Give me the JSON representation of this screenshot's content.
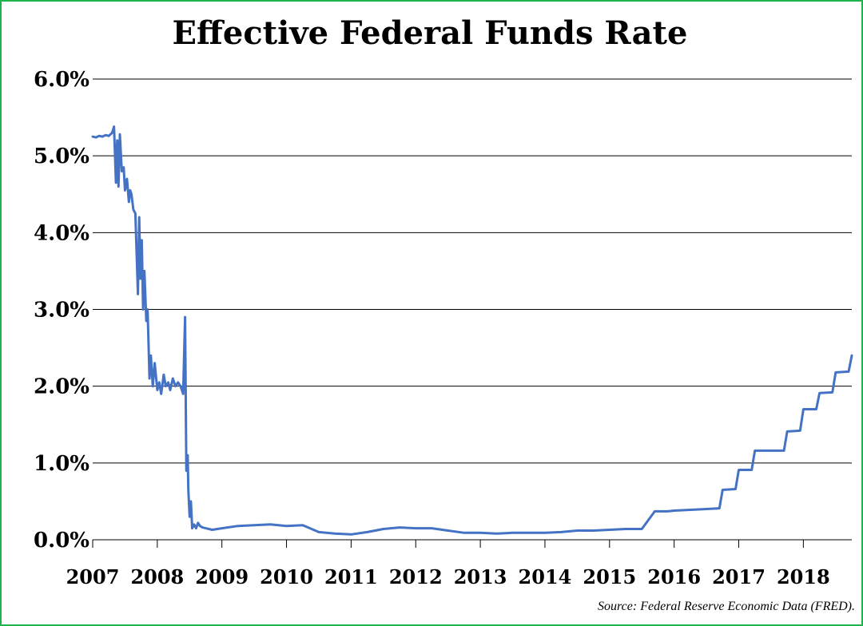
{
  "chart_data": {
    "type": "line",
    "title": "Effective Federal Funds Rate",
    "source": "Source: Federal Reserve Economic Data (FRED).",
    "xlabel": "",
    "ylabel": "",
    "x_ticks": [
      "2007",
      "2008",
      "2009",
      "2010",
      "2011",
      "2012",
      "2013",
      "2014",
      "2015",
      "2016",
      "2017",
      "2018"
    ],
    "y_ticks": [
      "0.0%",
      "1.0%",
      "2.0%",
      "3.0%",
      "4.0%",
      "5.0%",
      "6.0%"
    ],
    "ylim": [
      0,
      6
    ],
    "xlim": [
      2007.0,
      2018.75
    ],
    "grid": "horizontal",
    "legend": "none",
    "line_color": "#4472c4",
    "series": [
      {
        "x": [
          2007.0,
          2007.05,
          2007.1,
          2007.15,
          2007.2,
          2007.25,
          2007.3,
          2007.33,
          2007.36,
          2007.38,
          2007.4,
          2007.42,
          2007.45,
          2007.48,
          2007.5,
          2007.53,
          2007.56,
          2007.58,
          2007.6,
          2007.63,
          2007.66,
          2007.7,
          2007.72,
          2007.74,
          2007.76,
          2007.78,
          2007.8,
          2007.83,
          2007.85,
          2007.88,
          2007.9,
          2007.93,
          2007.96,
          2008.0,
          2008.03,
          2008.06,
          2008.1,
          2008.13,
          2008.17,
          2008.2,
          2008.24,
          2008.28,
          2008.32,
          2008.36,
          2008.4,
          2008.43,
          2008.45,
          2008.47,
          2008.48,
          2008.5,
          2008.52,
          2008.54,
          2008.57,
          2008.6,
          2008.63,
          2008.66,
          2008.7,
          2008.75,
          2008.85,
          2009.0,
          2009.25,
          2009.5,
          2009.75,
          2010.0,
          2010.25,
          2010.5,
          2010.75,
          2011.0,
          2011.25,
          2011.5,
          2011.75,
          2012.0,
          2012.25,
          2012.5,
          2012.75,
          2013.0,
          2013.25,
          2013.5,
          2013.75,
          2014.0,
          2014.25,
          2014.5,
          2014.75,
          2015.0,
          2015.25,
          2015.5,
          2015.7,
          2015.75,
          2015.9,
          2016.0,
          2016.25,
          2016.5,
          2016.7,
          2016.75,
          2016.95,
          2017.0,
          2017.2,
          2017.25,
          2017.45,
          2017.5,
          2017.7,
          2017.75,
          2017.95,
          2018.0,
          2018.2,
          2018.25,
          2018.45,
          2018.5,
          2018.7,
          2018.75
        ],
        "y": [
          5.25,
          5.24,
          5.26,
          5.25,
          5.27,
          5.26,
          5.3,
          5.38,
          4.65,
          5.2,
          4.6,
          5.28,
          4.8,
          4.85,
          4.55,
          4.7,
          4.4,
          4.55,
          4.5,
          4.3,
          4.25,
          3.2,
          4.2,
          3.4,
          3.9,
          3.0,
          3.5,
          2.85,
          3.0,
          2.1,
          2.4,
          2.0,
          2.3,
          1.95,
          2.05,
          1.9,
          2.15,
          2.0,
          2.05,
          1.95,
          2.1,
          2.0,
          2.05,
          2.0,
          1.9,
          2.9,
          0.9,
          1.1,
          0.65,
          0.3,
          0.5,
          0.15,
          0.2,
          0.15,
          0.22,
          0.18,
          0.16,
          0.15,
          0.13,
          0.15,
          0.18,
          0.19,
          0.2,
          0.18,
          0.19,
          0.1,
          0.08,
          0.07,
          0.1,
          0.14,
          0.16,
          0.15,
          0.15,
          0.12,
          0.09,
          0.09,
          0.08,
          0.09,
          0.09,
          0.09,
          0.1,
          0.12,
          0.12,
          0.13,
          0.14,
          0.14,
          0.37,
          0.37,
          0.37,
          0.38,
          0.39,
          0.4,
          0.41,
          0.65,
          0.66,
          0.91,
          0.91,
          1.16,
          1.16,
          1.16,
          1.16,
          1.41,
          1.42,
          1.7,
          1.7,
          1.91,
          1.92,
          2.18,
          2.19,
          2.4
        ]
      }
    ]
  }
}
